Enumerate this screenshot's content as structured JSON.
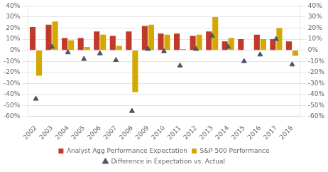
{
  "chart_data": {
    "type": "bar",
    "categories": [
      "2002",
      "2003",
      "2004",
      "2005",
      "2006",
      "2007",
      "2008",
      "2009",
      "2010",
      "2011",
      "2012",
      "2013",
      "2014",
      "2015",
      "2016",
      "2017",
      "2018"
    ],
    "series": [
      {
        "name": "Analyst Agg Performance Expectation",
        "color": "#c0392b",
        "values": [
          21,
          23,
          11,
          11,
          17,
          13,
          17,
          22,
          15,
          15,
          13,
          17,
          8,
          10,
          14,
          10,
          8
        ]
      },
      {
        "name": "S&P 500 Performance",
        "color": "#d4a800",
        "values": [
          -23,
          26,
          9,
          3,
          14,
          4,
          -38,
          23,
          14,
          1,
          14,
          30,
          11,
          0,
          10,
          20,
          -5
        ]
      },
      {
        "name": "Difference in Expectation vs. Actual",
        "color": "#4a5568",
        "type": "scatter",
        "marker": "triangle",
        "values": [
          -44,
          3,
          -2,
          -8,
          -3,
          -9,
          -55,
          1,
          -1,
          -14,
          1,
          13,
          3,
          -10,
          -4,
          10,
          -13
        ]
      }
    ],
    "ylim": [
      -60,
      40
    ],
    "yticks": [
      {
        "value": -60,
        "label": "-60%"
      },
      {
        "value": -50,
        "label": "-50%"
      },
      {
        "value": -40,
        "label": "-40%"
      },
      {
        "value": -30,
        "label": "-30%"
      },
      {
        "value": -20,
        "label": "-20%"
      },
      {
        "value": -10,
        "label": "-10%"
      },
      {
        "value": 0,
        "label": "0%"
      },
      {
        "value": 10,
        "label": "10%"
      },
      {
        "value": 20,
        "label": "20%"
      },
      {
        "value": 30,
        "label": "30%"
      },
      {
        "value": 40,
        "label": "40%"
      }
    ],
    "y2lim": [
      -60,
      40
    ],
    "y2ticks": [
      {
        "value": -60,
        "label": "-60%"
      },
      {
        "value": -50,
        "label": "-50%"
      },
      {
        "value": -40,
        "label": "-40%"
      },
      {
        "value": -30,
        "label": "-30%"
      },
      {
        "value": -20,
        "label": "-20%"
      },
      {
        "value": -10,
        "label": "-10%"
      },
      {
        "value": 0,
        "label": "0%"
      },
      {
        "value": 10,
        "label": "10%"
      },
      {
        "value": 20,
        "label": "20%"
      },
      {
        "value": 30,
        "label": "30%"
      },
      {
        "value": 40,
        "label": "40%"
      }
    ],
    "grid": true,
    "legend": "bottom"
  }
}
